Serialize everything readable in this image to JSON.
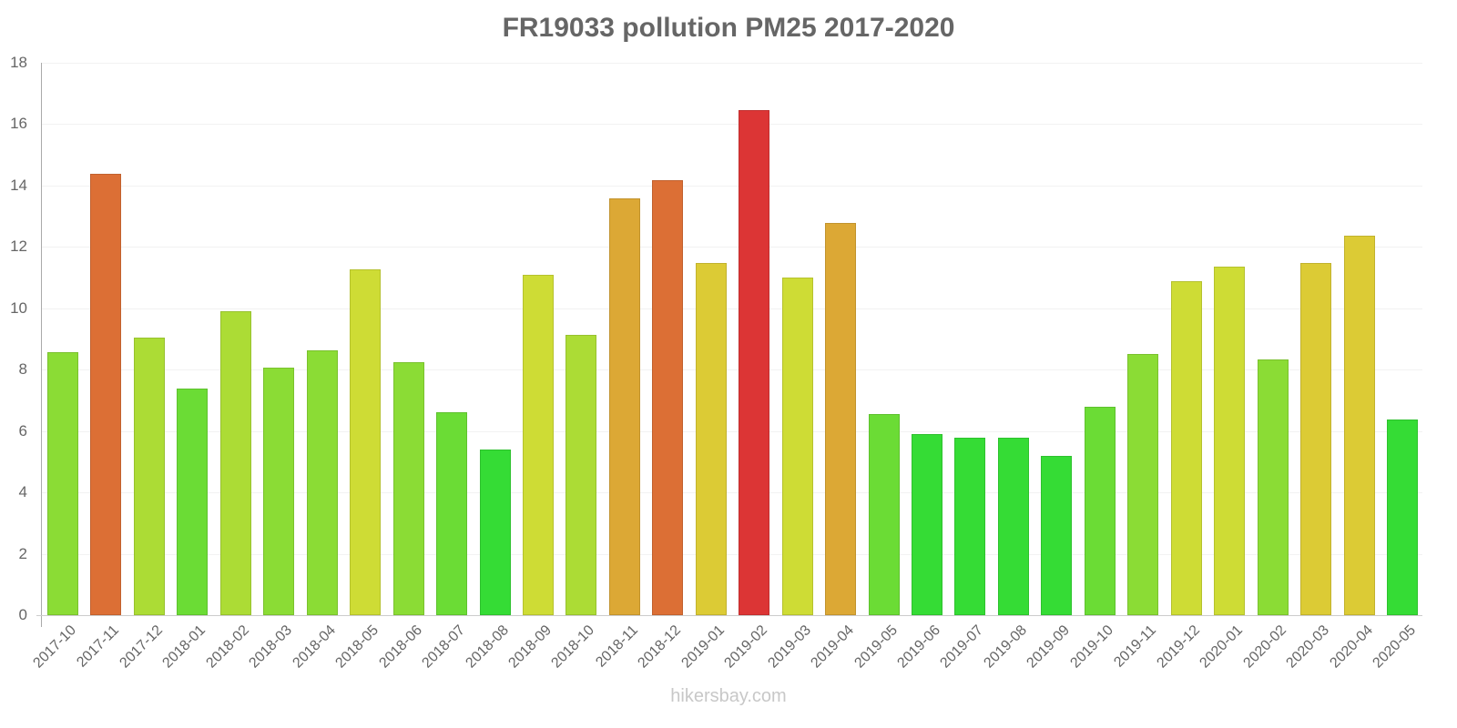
{
  "chart_data": {
    "type": "bar",
    "title": "FR19033 pollution PM25 2017-2020",
    "xlabel": "",
    "ylabel": "",
    "ylim": [
      0,
      18
    ],
    "yticks": [
      0,
      2,
      4,
      6,
      8,
      10,
      12,
      14,
      16,
      18
    ],
    "grid": true,
    "legend": null,
    "categories": [
      "2017-10",
      "2017-11",
      "2017-12",
      "2018-01",
      "2018-02",
      "2018-03",
      "2018-04",
      "2018-05",
      "2018-06",
      "2018-07",
      "2018-08",
      "2018-09",
      "2018-10",
      "2018-11",
      "2018-12",
      "2019-01",
      "2019-02",
      "2019-03",
      "2019-04",
      "2019-05",
      "2019-06",
      "2019-07",
      "2019-08",
      "2019-09",
      "2019-10",
      "2019-11",
      "2019-12",
      "2020-01",
      "2020-02",
      "2020-03",
      "2020-04",
      "2020-05"
    ],
    "values": [
      8.57,
      14.38,
      9.03,
      7.39,
      9.91,
      8.06,
      8.63,
      11.28,
      8.24,
      6.6,
      5.39,
      11.08,
      9.12,
      13.57,
      14.17,
      11.48,
      16.45,
      10.99,
      12.77,
      6.55,
      5.9,
      5.77,
      5.77,
      5.2,
      6.78,
      8.52,
      10.88,
      11.37,
      8.33,
      11.48,
      12.38,
      6.37
    ],
    "colors": [
      "#8bdc35",
      "#dc6f35",
      "#acdc35",
      "#6bdc35",
      "#acdc35",
      "#8bdc35",
      "#8bdc35",
      "#cedc35",
      "#8bdc35",
      "#6bdc35",
      "#35dc35",
      "#cedc35",
      "#acdc35",
      "#dca835",
      "#dc6f35",
      "#dccb35",
      "#dc3535",
      "#cedc35",
      "#dca835",
      "#6bdc35",
      "#35dc35",
      "#35dc35",
      "#35dc35",
      "#35dc35",
      "#6bdc35",
      "#8bdc35",
      "#cedc35",
      "#cedc35",
      "#8bdc35",
      "#dccb35",
      "#dccb35",
      "#35dc35"
    ]
  },
  "watermark": "hikersbay.com"
}
